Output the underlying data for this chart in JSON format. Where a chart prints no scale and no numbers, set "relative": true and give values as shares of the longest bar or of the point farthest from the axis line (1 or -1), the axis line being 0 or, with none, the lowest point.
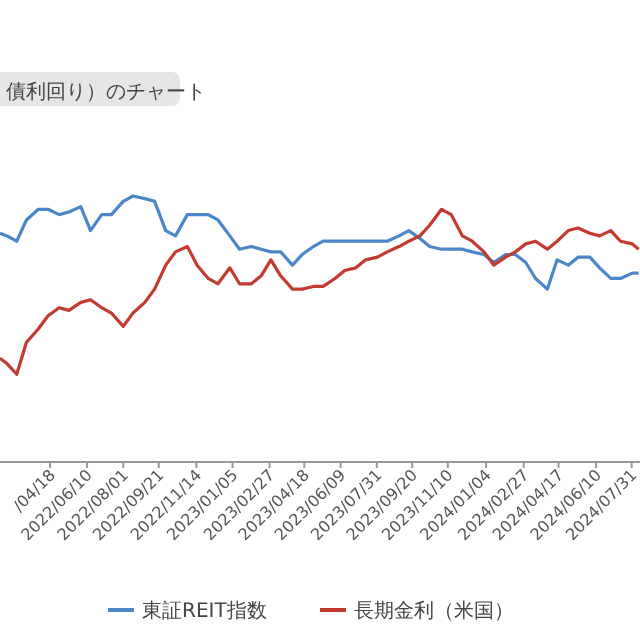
{
  "chart_data": {
    "type": "line",
    "title": "債利回り）のチャート",
    "relative": true,
    "legend": "bottom",
    "x": [
      "2022-02-05",
      "2022-02-15",
      "2022-03-01",
      "2022-03-15",
      "2022-04-01",
      "2022-04-15",
      "2022-05-01",
      "2022-05-15",
      "2022-06-01",
      "2022-06-15",
      "2022-07-01",
      "2022-07-15",
      "2022-08-01",
      "2022-08-15",
      "2022-09-01",
      "2022-09-15",
      "2022-10-01",
      "2022-10-15",
      "2022-11-01",
      "2022-11-15",
      "2022-12-01",
      "2022-12-15",
      "2023-01-01",
      "2023-01-15",
      "2023-02-01",
      "2023-02-15",
      "2023-03-01",
      "2023-03-15",
      "2023-04-01",
      "2023-04-15",
      "2023-05-01",
      "2023-05-15",
      "2023-06-01",
      "2023-06-15",
      "2023-07-01",
      "2023-07-15",
      "2023-08-01",
      "2023-08-15",
      "2023-09-01",
      "2023-09-15",
      "2023-10-01",
      "2023-10-15",
      "2023-11-01",
      "2023-11-15",
      "2023-12-01",
      "2023-12-15",
      "2024-01-01",
      "2024-01-15",
      "2024-02-01",
      "2024-02-15",
      "2024-03-01",
      "2024-03-15",
      "2024-04-01",
      "2024-04-15",
      "2024-05-01",
      "2024-05-15",
      "2024-06-01",
      "2024-06-15",
      "2024-07-01",
      "2024-07-15",
      "2024-08-01",
      "2024-08-10"
    ],
    "xlim": [
      "2022-02-05",
      "2024-08-12"
    ],
    "xticks": [
      {
        "value": "2022-04-18",
        "label": "/04/18"
      },
      {
        "value": "2022-06-10",
        "label": "2022/06/10"
      },
      {
        "value": "2022-08-01",
        "label": "2022/08/01"
      },
      {
        "value": "2022-09-21",
        "label": "2022/09/21"
      },
      {
        "value": "2022-11-14",
        "label": "2022/11/14"
      },
      {
        "value": "2023-01-05",
        "label": "2023/01/05"
      },
      {
        "value": "2023-02-27",
        "label": "2023/02/27"
      },
      {
        "value": "2023-04-18",
        "label": "2023/04/18"
      },
      {
        "value": "2023-06-09",
        "label": "2023/06/09"
      },
      {
        "value": "2023-07-31",
        "label": "2023/07/31"
      },
      {
        "value": "2023-09-20",
        "label": "2023/09/20"
      },
      {
        "value": "2023-11-10",
        "label": "2023/11/10"
      },
      {
        "value": "2024-01-04",
        "label": "2024/01/04"
      },
      {
        "value": "2024-02-27",
        "label": "2024/02/27"
      },
      {
        "value": "2024-04-17",
        "label": "2024/04/17"
      },
      {
        "value": "2024-06-10",
        "label": "2024/06/10"
      },
      {
        "value": "2024-07-31",
        "label": "2024/07/31"
      }
    ],
    "series": [
      {
        "name": "東証REIT指数",
        "color": "#4a86c8",
        "values": [
          0.86,
          0.85,
          0.83,
          0.91,
          0.95,
          0.95,
          0.93,
          0.94,
          0.96,
          0.87,
          0.93,
          0.93,
          0.98,
          1.0,
          0.99,
          0.98,
          0.87,
          0.85,
          0.93,
          0.93,
          0.93,
          0.91,
          0.85,
          0.8,
          0.81,
          0.8,
          0.79,
          0.79,
          0.74,
          0.78,
          0.81,
          0.83,
          0.83,
          0.83,
          0.83,
          0.83,
          0.83,
          0.83,
          0.85,
          0.87,
          0.84,
          0.81,
          0.8,
          0.8,
          0.8,
          0.79,
          0.78,
          0.75,
          0.78,
          0.78,
          0.75,
          0.69,
          0.65,
          0.76,
          0.74,
          0.77,
          0.77,
          0.73,
          0.69,
          0.69,
          0.71,
          0.71
        ]
      },
      {
        "name": "長期金利（米国）",
        "color": "#c23b30",
        "values": [
          0.39,
          0.37,
          0.33,
          0.45,
          0.5,
          0.55,
          0.58,
          0.57,
          0.6,
          0.61,
          0.58,
          0.56,
          0.51,
          0.56,
          0.6,
          0.65,
          0.74,
          0.79,
          0.81,
          0.74,
          0.69,
          0.67,
          0.73,
          0.67,
          0.67,
          0.7,
          0.76,
          0.7,
          0.65,
          0.65,
          0.66,
          0.66,
          0.69,
          0.72,
          0.73,
          0.76,
          0.77,
          0.79,
          0.81,
          0.83,
          0.85,
          0.89,
          0.95,
          0.93,
          0.85,
          0.83,
          0.79,
          0.74,
          0.77,
          0.79,
          0.82,
          0.83,
          0.8,
          0.83,
          0.87,
          0.88,
          0.86,
          0.85,
          0.87,
          0.83,
          0.82,
          0.8
        ]
      }
    ]
  }
}
